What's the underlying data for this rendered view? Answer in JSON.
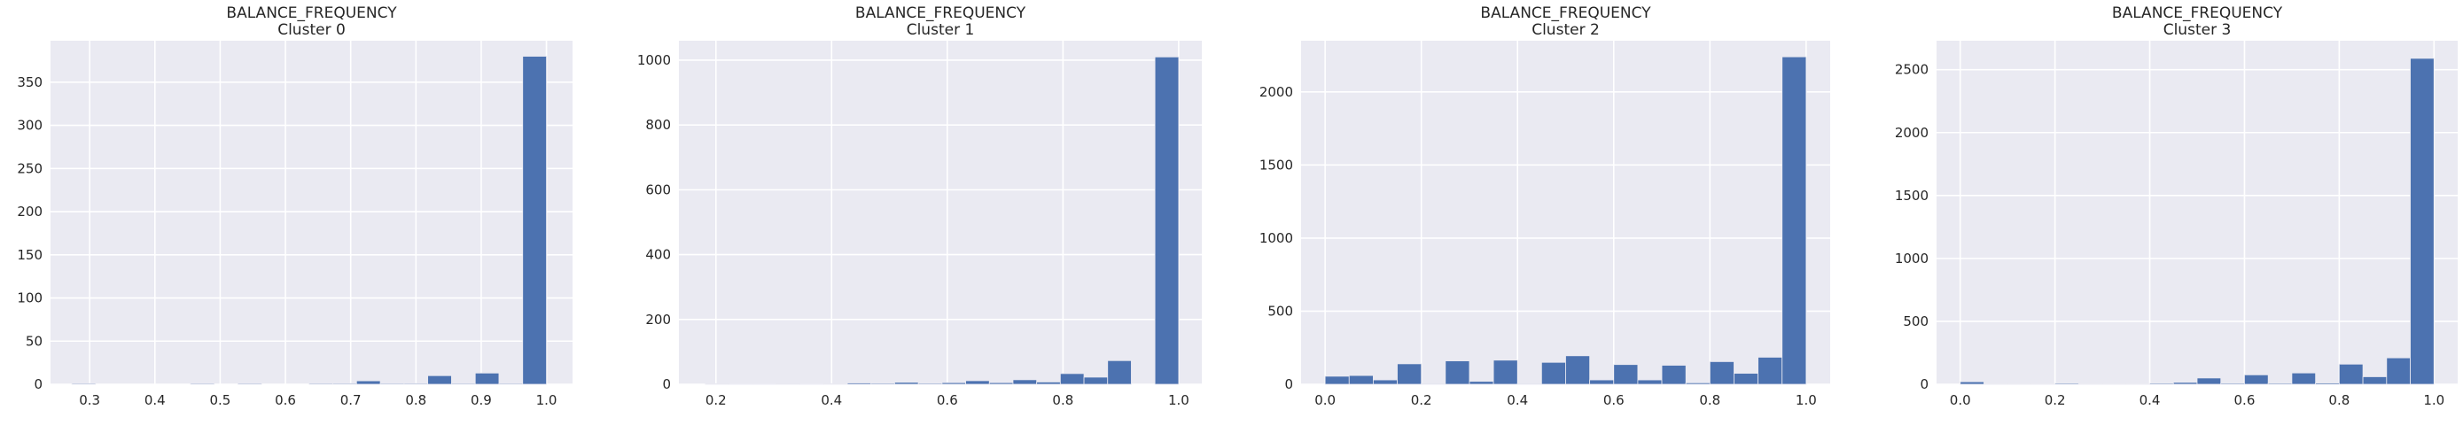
{
  "chart_data": [
    {
      "type": "bar",
      "title": "BALANCE_FREQUENCY",
      "subtitle": "Cluster 0",
      "xlabel": "",
      "ylabel": "",
      "xlim": [
        0.24,
        1.04
      ],
      "ylim": [
        0,
        398
      ],
      "xticks": [
        "0.3",
        "0.4",
        "0.5",
        "0.6",
        "0.7",
        "0.8",
        "0.9",
        "1.0"
      ],
      "yticks": [
        "0",
        "50",
        "100",
        "150",
        "200",
        "250",
        "300",
        "350"
      ],
      "bin_edges": [
        0.2727,
        0.309,
        0.3454,
        0.3818,
        0.4181,
        0.4545,
        0.4909,
        0.5272,
        0.5636,
        0.6,
        0.6363,
        0.6727,
        0.709,
        0.7454,
        0.7818,
        0.8181,
        0.8545,
        0.8909,
        0.9272,
        0.9636,
        1.0
      ],
      "counts": [
        1,
        0,
        0,
        0,
        0,
        1,
        0,
        1,
        0,
        0,
        1,
        1,
        4,
        1,
        1,
        10,
        1,
        13,
        1,
        380
      ],
      "bar_color": "#4c72b0",
      "grid": true
    },
    {
      "type": "bar",
      "title": "BALANCE_FREQUENCY",
      "subtitle": "Cluster 1",
      "xlabel": "",
      "ylabel": "",
      "xlim": [
        0.136,
        1.04
      ],
      "ylim": [
        0,
        1060
      ],
      "xticks": [
        "0.2",
        "0.4",
        "0.6",
        "0.8",
        "1.0"
      ],
      "yticks": [
        "0",
        "200",
        "400",
        "600",
        "800",
        "1000"
      ],
      "bin_edges": [
        0.1818,
        0.2227,
        0.2636,
        0.3045,
        0.3454,
        0.3863,
        0.4272,
        0.4681,
        0.509,
        0.55,
        0.5909,
        0.6318,
        0.6727,
        0.7136,
        0.7545,
        0.7954,
        0.8363,
        0.8772,
        0.9181,
        0.959,
        1.0
      ],
      "counts": [
        2,
        1,
        1,
        2,
        1,
        2,
        4,
        3,
        6,
        3,
        5,
        11,
        5,
        14,
        7,
        33,
        22,
        73,
        0,
        1010
      ],
      "bar_color": "#4c72b0",
      "grid": true
    },
    {
      "type": "bar",
      "title": "BALANCE_FREQUENCY",
      "subtitle": "Cluster 2",
      "xlabel": "",
      "ylabel": "",
      "xlim": [
        -0.05,
        1.05
      ],
      "ylim": [
        0,
        2350
      ],
      "xticks": [
        "0.0",
        "0.2",
        "0.4",
        "0.6",
        "0.8",
        "1.0"
      ],
      "yticks": [
        "0",
        "500",
        "1000",
        "1500",
        "2000"
      ],
      "bin_edges": [
        0.0,
        0.05,
        0.1,
        0.15,
        0.2,
        0.25,
        0.3,
        0.35,
        0.4,
        0.45,
        0.5,
        0.55,
        0.6,
        0.65,
        0.7,
        0.75,
        0.8,
        0.85,
        0.9,
        0.95,
        1.0
      ],
      "counts": [
        55,
        60,
        30,
        140,
        5,
        160,
        20,
        165,
        5,
        150,
        195,
        30,
        135,
        30,
        130,
        10,
        155,
        75,
        185,
        2240
      ],
      "bar_color": "#4c72b0",
      "grid": true
    },
    {
      "type": "bar",
      "title": "BALANCE_FREQUENCY",
      "subtitle": "Cluster 3",
      "xlabel": "",
      "ylabel": "",
      "xlim": [
        -0.05,
        1.05
      ],
      "ylim": [
        0,
        2730
      ],
      "xticks": [
        "0.0",
        "0.2",
        "0.4",
        "0.6",
        "0.8",
        "1.0"
      ],
      "yticks": [
        "0",
        "500",
        "1000",
        "1500",
        "2000",
        "2500"
      ],
      "bin_edges": [
        0.0,
        0.05,
        0.1,
        0.15,
        0.2,
        0.25,
        0.3,
        0.35,
        0.4,
        0.45,
        0.5,
        0.55,
        0.6,
        0.65,
        0.7,
        0.75,
        0.8,
        0.85,
        0.9,
        0.95,
        1.0
      ],
      "counts": [
        20,
        3,
        3,
        3,
        8,
        3,
        3,
        3,
        8,
        15,
        50,
        8,
        75,
        8,
        90,
        10,
        160,
        60,
        210,
        2590
      ],
      "bar_color": "#4c72b0",
      "grid": true
    }
  ],
  "style": {
    "plot_background": "#eaeaf2",
    "grid_color": "#ffffff",
    "text_color": "#262626"
  }
}
